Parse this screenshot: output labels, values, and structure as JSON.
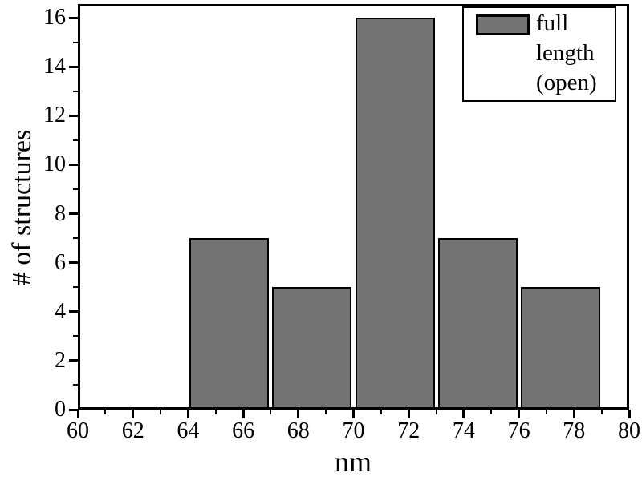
{
  "chart_data": {
    "type": "bar",
    "title": "",
    "xlabel": "nm",
    "ylabel": "# of structures",
    "bin_edges": [
      64,
      67,
      70,
      73,
      76,
      79
    ],
    "values": [
      7,
      5,
      16,
      7,
      5
    ],
    "xlim": [
      60,
      80
    ],
    "ylim": [
      0,
      16.6
    ],
    "x_major_ticks": [
      60,
      62,
      64,
      66,
      68,
      70,
      72,
      74,
      76,
      78,
      80
    ],
    "x_minor_ticks": [
      61,
      63,
      65,
      67,
      69,
      71,
      73,
      75,
      77,
      79
    ],
    "y_major_ticks": [
      0,
      2,
      4,
      6,
      8,
      10,
      12,
      14,
      16
    ],
    "y_minor_ticks": [
      1,
      3,
      5,
      7,
      9,
      11,
      13,
      15
    ],
    "grid": false,
    "bar_color": "#737373",
    "bar_border_color": "#000000",
    "frame_color": "#000000",
    "legend": {
      "position": "top-right",
      "label": "full length (open)",
      "lines": [
        "full",
        "length",
        "(open)"
      ],
      "swatch_color": "#737373"
    }
  }
}
